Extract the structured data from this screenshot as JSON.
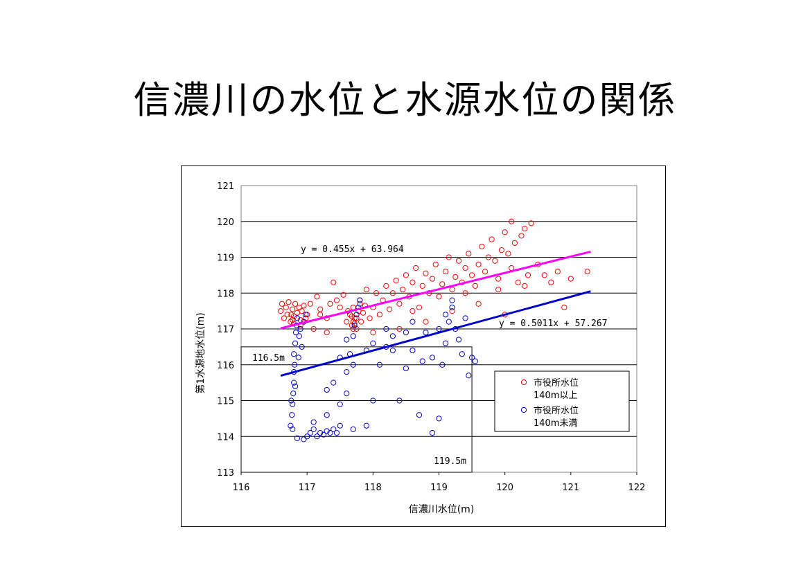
{
  "slide": {
    "title": "信濃川の水位と水源水位の関係"
  },
  "chart_data": {
    "type": "scatter",
    "title": "",
    "xlabel": "信濃川水位(m)",
    "ylabel": "第1水源地水位(m)",
    "xlim": [
      116,
      122
    ],
    "ylim": [
      113,
      121
    ],
    "xticks": [
      "116",
      "117",
      "118",
      "119",
      "120",
      "121",
      "122"
    ],
    "yticks": [
      "113",
      "114",
      "115",
      "116",
      "117",
      "118",
      "119",
      "120",
      "121"
    ],
    "grid": "horizontal",
    "legend_position": "right",
    "colors": {
      "series_a": "#ff0000",
      "series_b": "#0000cc",
      "trend_a": "#ff00ff",
      "trend_b": "#0000cc"
    },
    "series": [
      {
        "name": "市役所水位 140m以上",
        "legend_lines": [
          "市役所水位",
          "140m以上"
        ],
        "marker": "open-circle",
        "trendline": {
          "slope": 0.455,
          "intercept": 63.964,
          "x_range": [
            116.6,
            121.3
          ],
          "label": "y = 0.455x + 63.964"
        },
        "points": [
          [
            116.6,
            117.5
          ],
          [
            116.62,
            117.7
          ],
          [
            116.65,
            117.3
          ],
          [
            116.68,
            117.6
          ],
          [
            116.7,
            117.4
          ],
          [
            116.72,
            117.75
          ],
          [
            116.75,
            117.2
          ],
          [
            116.78,
            117.55
          ],
          [
            116.8,
            117.35
          ],
          [
            116.82,
            117.7
          ],
          [
            116.85,
            117.45
          ],
          [
            116.88,
            117.6
          ],
          [
            116.9,
            117.25
          ],
          [
            116.92,
            117.5
          ],
          [
            116.95,
            117.65
          ],
          [
            116.98,
            117.3
          ],
          [
            117.0,
            117.4
          ],
          [
            117.05,
            117.7
          ],
          [
            117.1,
            117.0
          ],
          [
            117.15,
            117.9
          ],
          [
            117.2,
            117.55
          ],
          [
            117.3,
            117.3
          ],
          [
            117.35,
            117.7
          ],
          [
            117.4,
            118.3
          ],
          [
            117.45,
            117.8
          ],
          [
            117.5,
            117.6
          ],
          [
            117.55,
            117.95
          ],
          [
            117.6,
            117.2
          ],
          [
            117.62,
            117.5
          ],
          [
            117.65,
            117.4
          ],
          [
            117.68,
            117.1
          ],
          [
            117.7,
            117.6
          ],
          [
            117.72,
            117.3
          ],
          [
            117.75,
            117.0
          ],
          [
            117.78,
            117.5
          ],
          [
            117.8,
            117.8
          ],
          [
            117.82,
            117.2
          ],
          [
            117.85,
            117.45
          ],
          [
            117.88,
            117.65
          ],
          [
            117.9,
            118.1
          ],
          [
            117.95,
            117.3
          ],
          [
            118.0,
            117.6
          ],
          [
            118.05,
            118.0
          ],
          [
            118.1,
            117.4
          ],
          [
            118.15,
            117.8
          ],
          [
            118.2,
            118.2
          ],
          [
            118.25,
            117.55
          ],
          [
            118.3,
            118.0
          ],
          [
            118.35,
            118.35
          ],
          [
            118.4,
            117.7
          ],
          [
            118.45,
            118.1
          ],
          [
            118.5,
            118.5
          ],
          [
            118.55,
            117.9
          ],
          [
            118.6,
            118.3
          ],
          [
            118.65,
            118.7
          ],
          [
            118.7,
            117.6
          ],
          [
            118.75,
            118.2
          ],
          [
            118.8,
            118.55
          ],
          [
            118.85,
            118.0
          ],
          [
            118.9,
            118.4
          ],
          [
            118.95,
            118.8
          ],
          [
            119.0,
            117.9
          ],
          [
            119.05,
            118.25
          ],
          [
            119.1,
            118.6
          ],
          [
            119.15,
            119.0
          ],
          [
            119.2,
            118.1
          ],
          [
            119.25,
            118.45
          ],
          [
            119.3,
            118.9
          ],
          [
            119.35,
            118.3
          ],
          [
            119.4,
            118.7
          ],
          [
            119.45,
            119.1
          ],
          [
            119.5,
            118.5
          ],
          [
            119.55,
            118.2
          ],
          [
            119.6,
            118.8
          ],
          [
            119.65,
            119.3
          ],
          [
            119.7,
            118.6
          ],
          [
            119.75,
            119.0
          ],
          [
            119.8,
            119.5
          ],
          [
            119.85,
            118.9
          ],
          [
            119.9,
            118.4
          ],
          [
            119.95,
            119.2
          ],
          [
            120.0,
            119.7
          ],
          [
            120.05,
            119.1
          ],
          [
            120.1,
            118.7
          ],
          [
            120.15,
            119.4
          ],
          [
            120.2,
            118.3
          ],
          [
            120.25,
            119.6
          ],
          [
            120.3,
            119.8
          ],
          [
            120.35,
            118.5
          ],
          [
            120.4,
            119.95
          ],
          [
            120.1,
            120.0
          ],
          [
            120.5,
            118.8
          ],
          [
            120.6,
            118.5
          ],
          [
            120.7,
            118.3
          ],
          [
            120.8,
            118.6
          ],
          [
            120.9,
            117.6
          ],
          [
            121.0,
            118.4
          ],
          [
            121.25,
            118.6
          ],
          [
            120.0,
            117.4
          ],
          [
            119.6,
            117.7
          ],
          [
            119.2,
            117.5
          ],
          [
            118.8,
            117.2
          ],
          [
            118.4,
            117.0
          ],
          [
            118.0,
            116.9
          ],
          [
            117.3,
            116.9
          ],
          [
            116.9,
            117.1
          ],
          [
            117.2,
            117.4
          ],
          [
            117.8,
            117.7
          ],
          [
            118.6,
            117.5
          ],
          [
            119.4,
            118.0
          ],
          [
            120.3,
            118.2
          ],
          [
            119.9,
            118.1
          ],
          [
            117.7,
            117.2
          ],
          [
            117.7,
            117.0
          ],
          [
            117.75,
            117.3
          ],
          [
            117.72,
            117.15
          ],
          [
            117.68,
            117.35
          ],
          [
            116.78,
            117.25
          ],
          [
            116.8,
            117.15
          ],
          [
            116.76,
            117.4
          ]
        ]
      },
      {
        "name": "市役所水位 140m未満",
        "legend_lines": [
          "市役所水位",
          "140m未満"
        ],
        "marker": "open-circle",
        "trendline": {
          "slope": 0.5011,
          "intercept": 57.267,
          "x_range": [
            116.6,
            121.3
          ],
          "label": "y = 0.5011x + 57.267"
        },
        "points": [
          [
            116.75,
            114.3
          ],
          [
            116.77,
            114.6
          ],
          [
            116.78,
            114.9
          ],
          [
            116.79,
            115.2
          ],
          [
            116.8,
            115.5
          ],
          [
            116.8,
            115.8
          ],
          [
            116.81,
            116.0
          ],
          [
            116.8,
            116.3
          ],
          [
            116.82,
            116.6
          ],
          [
            116.83,
            116.9
          ],
          [
            116.84,
            117.1
          ],
          [
            116.85,
            117.3
          ],
          [
            116.78,
            114.2
          ],
          [
            116.76,
            115.0
          ],
          [
            116.82,
            115.4
          ],
          [
            116.87,
            116.2
          ],
          [
            116.88,
            116.8
          ],
          [
            116.9,
            117.0
          ],
          [
            116.92,
            116.5
          ],
          [
            116.95,
            117.2
          ],
          [
            116.98,
            117.4
          ],
          [
            117.0,
            114.0
          ],
          [
            117.05,
            114.1
          ],
          [
            117.1,
            114.2
          ],
          [
            117.15,
            114.0
          ],
          [
            117.2,
            114.1
          ],
          [
            117.25,
            114.05
          ],
          [
            117.3,
            114.15
          ],
          [
            117.35,
            114.1
          ],
          [
            117.4,
            114.2
          ],
          [
            117.45,
            114.1
          ],
          [
            117.5,
            114.3
          ],
          [
            117.3,
            114.6
          ],
          [
            117.5,
            114.9
          ],
          [
            117.6,
            115.2
          ],
          [
            117.4,
            115.5
          ],
          [
            117.6,
            115.8
          ],
          [
            117.7,
            116.0
          ],
          [
            117.65,
            116.3
          ],
          [
            117.7,
            116.8
          ],
          [
            117.72,
            117.1
          ],
          [
            117.75,
            117.4
          ],
          [
            117.78,
            117.6
          ],
          [
            117.8,
            117.8
          ],
          [
            117.7,
            114.2
          ],
          [
            117.9,
            114.3
          ],
          [
            118.0,
            115.0
          ],
          [
            118.1,
            116.0
          ],
          [
            118.2,
            116.5
          ],
          [
            118.3,
            116.8
          ],
          [
            118.4,
            115.0
          ],
          [
            118.5,
            115.9
          ],
          [
            118.6,
            116.4
          ],
          [
            118.7,
            114.6
          ],
          [
            118.75,
            116.1
          ],
          [
            118.8,
            116.9
          ],
          [
            118.9,
            114.1
          ],
          [
            119.0,
            114.5
          ],
          [
            119.05,
            116.0
          ],
          [
            119.1,
            116.6
          ],
          [
            119.15,
            117.2
          ],
          [
            119.2,
            117.6
          ],
          [
            119.25,
            117.0
          ],
          [
            119.3,
            116.7
          ],
          [
            119.35,
            116.3
          ],
          [
            119.45,
            115.7
          ],
          [
            119.5,
            116.2
          ],
          [
            119.55,
            116.1
          ],
          [
            119.2,
            117.8
          ],
          [
            119.1,
            117.4
          ],
          [
            118.6,
            117.2
          ],
          [
            118.2,
            117.0
          ],
          [
            117.9,
            116.4
          ],
          [
            117.5,
            116.2
          ],
          [
            117.3,
            115.3
          ],
          [
            117.1,
            114.4
          ],
          [
            116.85,
            113.95
          ],
          [
            116.95,
            113.92
          ],
          [
            117.6,
            116.7
          ],
          [
            118.0,
            116.6
          ],
          [
            118.5,
            116.9
          ],
          [
            119.0,
            117.0
          ],
          [
            119.4,
            117.3
          ],
          [
            118.9,
            116.2
          ],
          [
            118.3,
            116.4
          ]
        ]
      }
    ],
    "annotations": [
      {
        "text": "116.5m",
        "ref_line": {
          "axis": "y",
          "value": 116.5
        }
      },
      {
        "text": "119.5m",
        "ref_line": {
          "axis": "x",
          "value": 119.5
        }
      }
    ]
  }
}
